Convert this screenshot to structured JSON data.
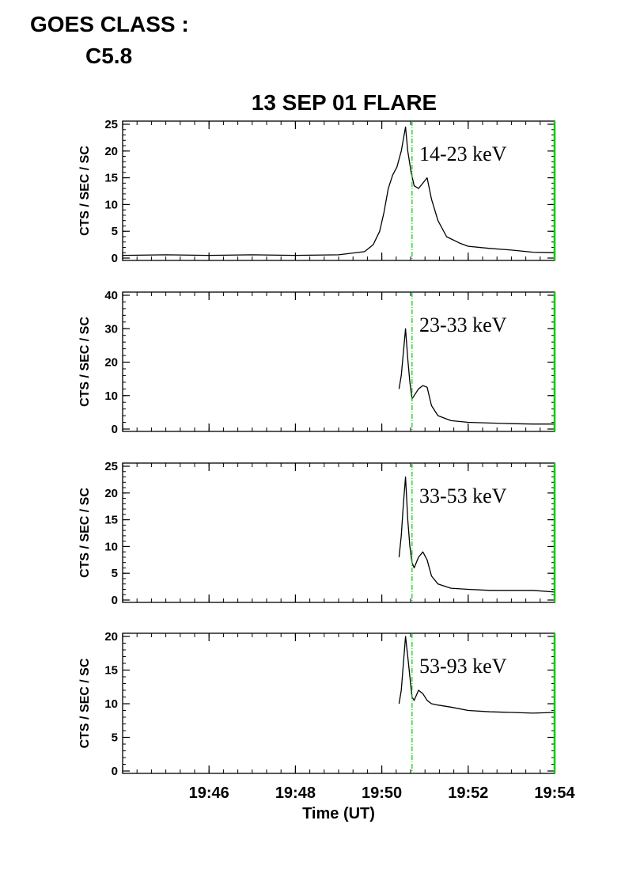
{
  "header": {
    "goes_label": "GOES CLASS :",
    "goes_value": "C5.8"
  },
  "chart_data": {
    "type": "line",
    "title": "13 SEP 01 FLARE",
    "xlabel": "Time (UT)",
    "x_tick_labels": [
      "19:46",
      "19:48",
      "19:50",
      "19:52",
      "19:54"
    ],
    "x_range_min": [
      44.0,
      54.0
    ],
    "marker_time_min": 50.7,
    "marker_color": "#00cc00",
    "line_color": "#000000",
    "panels": [
      {
        "band": "14-23 keV",
        "ylabel": "CTS / SEC / SC",
        "ylim": [
          0,
          25
        ],
        "yticks": [
          0,
          5,
          10,
          15,
          20,
          25
        ],
        "x": [
          44.0,
          45.0,
          46.0,
          47.0,
          48.0,
          49.0,
          49.6,
          49.8,
          49.95,
          50.05,
          50.15,
          50.25,
          50.35,
          50.45,
          50.55,
          50.6,
          50.68,
          50.75,
          50.85,
          50.95,
          51.05,
          51.15,
          51.3,
          51.5,
          51.8,
          52.0,
          52.5,
          53.0,
          53.5,
          54.0
        ],
        "values": [
          0.5,
          0.6,
          0.5,
          0.6,
          0.5,
          0.6,
          1.2,
          2.5,
          5.0,
          8.5,
          13.0,
          15.5,
          17.0,
          20.0,
          24.5,
          20.0,
          16.0,
          13.5,
          13.0,
          14.0,
          15.0,
          11.0,
          7.0,
          4.0,
          2.8,
          2.2,
          1.8,
          1.5,
          1.1,
          1.0
        ]
      },
      {
        "band": "23-33 keV",
        "ylabel": "CTS / SEC / SC",
        "ylim": [
          0,
          40
        ],
        "yticks": [
          0,
          10,
          20,
          30,
          40
        ],
        "x": [
          50.4,
          50.45,
          50.5,
          50.55,
          50.6,
          50.65,
          50.7,
          50.75,
          50.85,
          50.95,
          51.05,
          51.15,
          51.3,
          51.6,
          52.0,
          52.5,
          53.0,
          53.5,
          54.0
        ],
        "values": [
          12.0,
          16.0,
          23.0,
          30.0,
          21.0,
          14.0,
          9.0,
          10.0,
          12.0,
          13.0,
          12.5,
          7.0,
          4.0,
          2.5,
          2.0,
          1.8,
          1.6,
          1.5,
          1.5
        ]
      },
      {
        "band": "33-53 keV",
        "ylabel": "CTS / SEC / SC",
        "ylim": [
          0,
          25
        ],
        "yticks": [
          0,
          5,
          10,
          15,
          20,
          25
        ],
        "x": [
          50.4,
          50.45,
          50.5,
          50.55,
          50.6,
          50.65,
          50.7,
          50.75,
          50.85,
          50.95,
          51.05,
          51.15,
          51.3,
          51.6,
          52.0,
          52.5,
          53.0,
          53.5,
          54.0
        ],
        "values": [
          8.0,
          12.0,
          18.0,
          23.0,
          15.0,
          10.0,
          7.0,
          6.0,
          8.0,
          9.0,
          7.5,
          4.5,
          3.0,
          2.2,
          2.0,
          1.8,
          1.8,
          1.8,
          1.5
        ]
      },
      {
        "band": "53-93 keV",
        "ylabel": "CTS / SEC / SC",
        "ylim": [
          0,
          20
        ],
        "yticks": [
          0,
          5,
          10,
          15,
          20
        ],
        "x": [
          50.4,
          50.45,
          50.5,
          50.55,
          50.6,
          50.65,
          50.7,
          50.75,
          50.85,
          50.95,
          51.05,
          51.15,
          51.3,
          51.6,
          52.0,
          52.5,
          53.0,
          53.5,
          54.0
        ],
        "values": [
          10.0,
          12.0,
          16.0,
          20.0,
          17.0,
          14.0,
          11.0,
          10.5,
          12.0,
          11.5,
          10.5,
          10.0,
          9.8,
          9.5,
          9.0,
          8.8,
          8.7,
          8.6,
          8.7
        ]
      }
    ]
  }
}
